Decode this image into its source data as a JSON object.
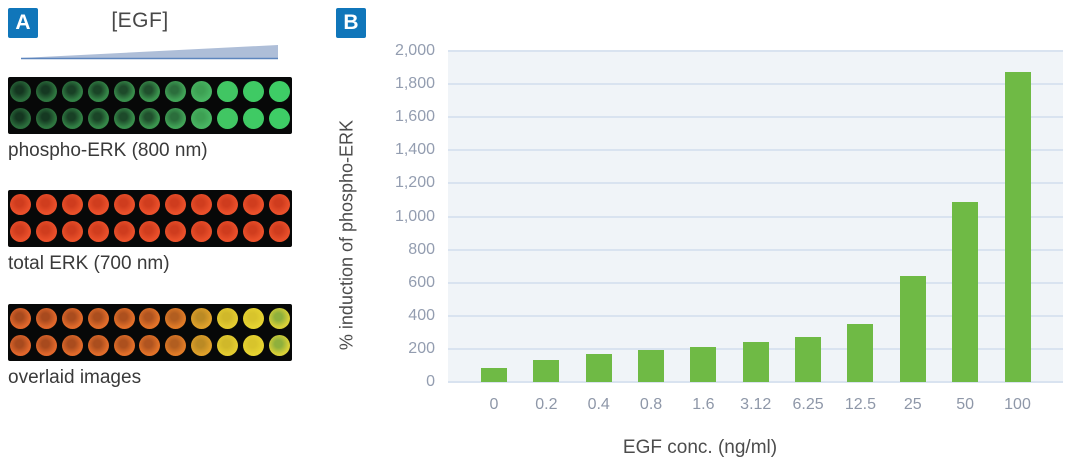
{
  "panelA": {
    "badge": "A",
    "egf_label": "[EGF]",
    "blots": [
      {
        "label": "phospho-ERK (800 nm)",
        "wells": [
          {
            "b": "#2b6d3c",
            "c": "#143620"
          },
          {
            "b": "#2e753f",
            "c": "#153922"
          },
          {
            "b": "#328045",
            "c": "#184025"
          },
          {
            "b": "#358748",
            "c": "#1a4527"
          },
          {
            "b": "#388d4b",
            "c": "#1d4a2a"
          },
          {
            "b": "#3b944e",
            "c": "#20502d"
          },
          {
            "b": "#41a357",
            "c": "#2b6e3c"
          },
          {
            "b": "#48b562",
            "c": "#3da053"
          },
          {
            "b": "#41c663",
            "c": "#41c663"
          },
          {
            "b": "#3fca64",
            "c": "#3fca64"
          },
          {
            "b": "#3ecd66",
            "c": "#3ecd66"
          }
        ]
      },
      {
        "label": "total ERK (700 nm)",
        "wells": [
          {
            "b": "#ea4f2a",
            "c": "#cf3c1e"
          },
          {
            "b": "#ea4f2a",
            "c": "#d03d1e"
          },
          {
            "b": "#e95029",
            "c": "#cf3c1e"
          },
          {
            "b": "#ea4f2a",
            "c": "#d03d1e"
          },
          {
            "b": "#e9502a",
            "c": "#cf3c1e"
          },
          {
            "b": "#ea4f2a",
            "c": "#d03d1e"
          },
          {
            "b": "#ea502a",
            "c": "#cf3c1e"
          },
          {
            "b": "#e94f2a",
            "c": "#d03d1e"
          },
          {
            "b": "#ea4f2a",
            "c": "#cf3c1e"
          },
          {
            "b": "#ea502a",
            "c": "#d03d1e"
          },
          {
            "b": "#e94f2a",
            "c": "#cf3c1e"
          }
        ]
      },
      {
        "label": "overlaid images",
        "wells": [
          {
            "b": "#e0662b",
            "c": "#a84a1e"
          },
          {
            "b": "#e0672b",
            "c": "#a84a1e"
          },
          {
            "b": "#e16a2a",
            "c": "#aa4c1e"
          },
          {
            "b": "#e16c2a",
            "c": "#ab4e1e"
          },
          {
            "b": "#e26f29",
            "c": "#ad501e"
          },
          {
            "b": "#e27228",
            "c": "#b05420"
          },
          {
            "b": "#e07b27",
            "c": "#b25e20"
          },
          {
            "b": "#dfa02a",
            "c": "#bb8a24"
          },
          {
            "b": "#e3cb30",
            "c": "#d0b82a"
          },
          {
            "b": "#e6d331",
            "c": "#d8c42c"
          },
          {
            "b": "#d8d038",
            "c": "#8fb03c"
          }
        ]
      }
    ]
  },
  "panelB": {
    "badge": "B"
  },
  "chart_data": {
    "type": "bar",
    "title": "",
    "categories": [
      "0",
      "0.2",
      "0.4",
      "0.8",
      "1.6",
      "3.12",
      "6.25",
      "12.5",
      "25",
      "50",
      "100"
    ],
    "values": [
      85,
      135,
      172,
      195,
      210,
      240,
      272,
      352,
      640,
      1085,
      1875
    ],
    "xlabel": "EGF conc. (ng/ml)",
    "ylabel": "% induction of phospho-ERK",
    "ylim": [
      0,
      2000
    ],
    "ytick_step": 200,
    "yticks": [
      "2,000",
      "1,800",
      "1,600",
      "1,400",
      "1,200",
      "1,000",
      "800",
      "600",
      "400",
      "200",
      "0"
    ],
    "grid": true,
    "legend": false
  },
  "colors": {
    "badge_bg": "#1076ba",
    "triangle_fill": "#aebed8",
    "triangle_edge": "#5d85bd",
    "bar": "#6fba45",
    "plot_bg": "#f0f4f8",
    "grid": "#d9e3f0"
  }
}
